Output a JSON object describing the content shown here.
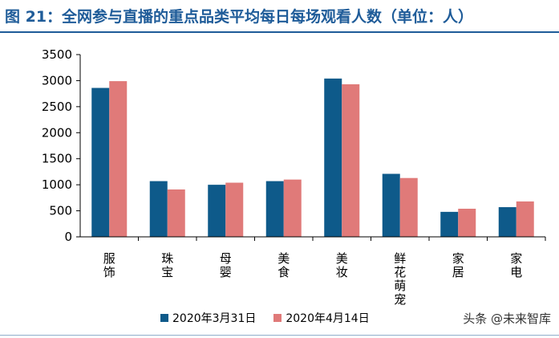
{
  "title": "图 21：全网参与直播的重点品类平均每日每场观看人数（单位：人）",
  "watermark": "头条 @未来智库",
  "colors": {
    "series1": "#0e5a8a",
    "series2": "#e07a79",
    "title": "#1f5c99"
  },
  "chart_data": {
    "type": "bar",
    "title": "图 21：全网参与直播的重点品类平均每日每场观看人数（单位：人）",
    "xlabel": "",
    "ylabel": "",
    "ylim": [
      0,
      3500
    ],
    "yticks": [
      "0",
      "500",
      "1000",
      "1500",
      "2000",
      "2500",
      "3000",
      "3500"
    ],
    "grid": false,
    "legend": "bottom",
    "categories": [
      "服饰",
      "珠宝",
      "母婴",
      "美食",
      "美妆",
      "鲜花萌宠",
      "家居",
      "家电"
    ],
    "series": [
      {
        "name": "2020年3月31日",
        "values": [
          2860,
          1070,
          1000,
          1070,
          3040,
          1210,
          480,
          570
        ]
      },
      {
        "name": "2020年4月14日",
        "values": [
          2990,
          910,
          1040,
          1100,
          2930,
          1130,
          540,
          680
        ]
      }
    ]
  }
}
